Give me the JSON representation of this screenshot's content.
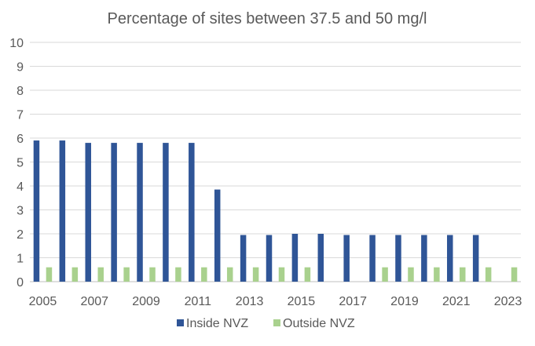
{
  "chart_data": {
    "type": "bar",
    "title": "Percentage of sites between 37.5 and 50 mg/l",
    "xlabel": "",
    "ylabel": "",
    "ylim": [
      0,
      10
    ],
    "yticks": [
      0,
      1,
      2,
      3,
      4,
      5,
      6,
      7,
      8,
      9,
      10
    ],
    "grid": true,
    "legend_position": "bottom",
    "categories": [
      "2005",
      "2006",
      "2007",
      "2008",
      "2009",
      "2010",
      "2011",
      "2012",
      "2013",
      "2014",
      "2015",
      "2016",
      "2017",
      "2018",
      "2019",
      "2020",
      "2021",
      "2022",
      "2023"
    ],
    "xtick_labels": [
      "2005",
      "2007",
      "2009",
      "2011",
      "2013",
      "2015",
      "2017",
      "2019",
      "2021",
      "2023"
    ],
    "series": [
      {
        "name": "Inside NVZ",
        "color": "#2F5597",
        "values": [
          5.9,
          5.9,
          5.8,
          5.8,
          5.8,
          5.8,
          5.8,
          3.85,
          1.95,
          1.95,
          2.0,
          2.0,
          1.95,
          1.95,
          1.95,
          1.95,
          1.95,
          1.95,
          null
        ]
      },
      {
        "name": "Outside NVZ",
        "color": "#A9D18E",
        "values": [
          0.6,
          0.6,
          0.6,
          0.6,
          0.6,
          0.6,
          0.6,
          0.6,
          0.6,
          0.6,
          0.6,
          null,
          null,
          0.6,
          0.6,
          0.6,
          0.6,
          0.6,
          0.6
        ]
      }
    ]
  }
}
